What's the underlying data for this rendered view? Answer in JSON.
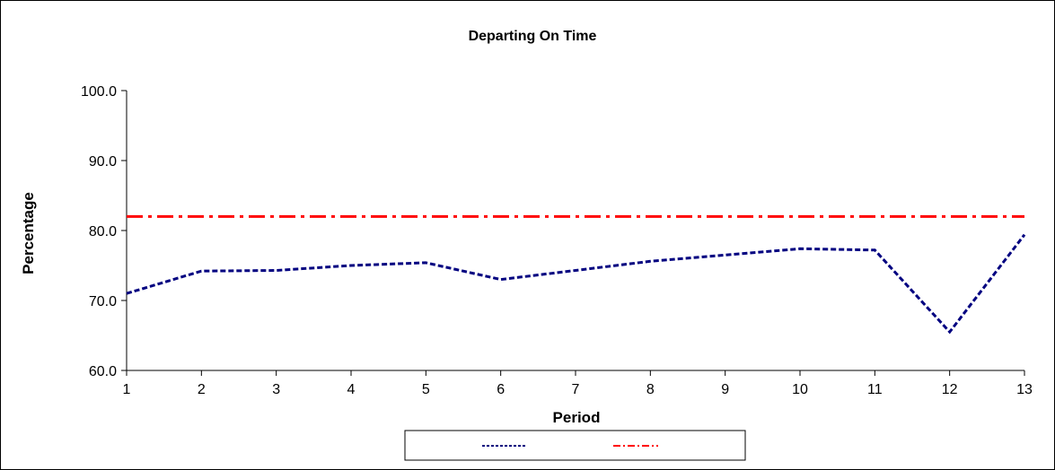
{
  "chart_data": {
    "type": "line",
    "title": "Departing On Time",
    "xlabel": "Period",
    "ylabel": "Percentage",
    "x": [
      1,
      2,
      3,
      4,
      5,
      6,
      7,
      8,
      9,
      10,
      11,
      12,
      13
    ],
    "xlim": [
      1,
      13
    ],
    "ylim": [
      60,
      100
    ],
    "yticks": [
      "60.0",
      "70.0",
      "80.0",
      "90.0",
      "100.0"
    ],
    "grid": false,
    "legend_position": "bottom",
    "series": [
      {
        "name": "",
        "color": "#000080",
        "style": "dashed",
        "values": [
          71.0,
          74.2,
          74.3,
          75.0,
          75.4,
          73.0,
          74.3,
          75.6,
          76.5,
          77.4,
          77.2,
          65.5,
          79.4
        ]
      },
      {
        "name": "",
        "color": "#ff0000",
        "style": "dash-dot",
        "values": [
          82.0,
          82.0,
          82.0,
          82.0,
          82.0,
          82.0,
          82.0,
          82.0,
          82.0,
          82.0,
          82.0,
          82.0,
          82.0
        ]
      }
    ]
  }
}
